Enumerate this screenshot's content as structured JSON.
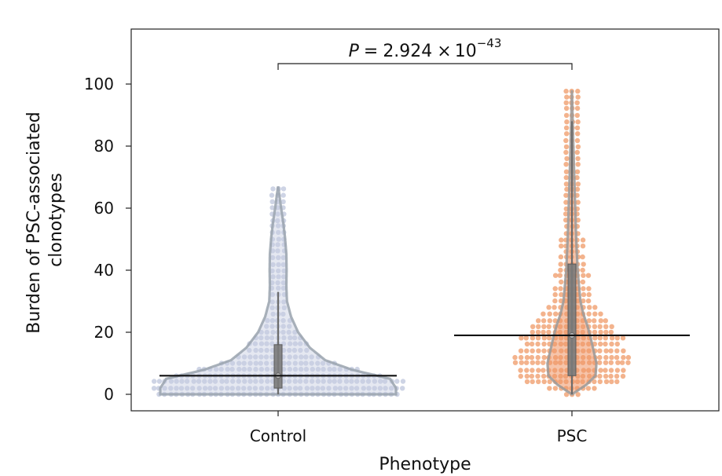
{
  "chart_data": {
    "type": "violin-swarm",
    "xlabel": "Phenotype",
    "ylabel_line1": "Burden of PSC-associated",
    "ylabel_line2": "clonotypes",
    "ylim": [
      -5,
      118
    ],
    "yticks": [
      0,
      20,
      40,
      60,
      80,
      100
    ],
    "categories": [
      "Control",
      "PSC"
    ],
    "groups": [
      {
        "name": "Control",
        "color": "#c5cde0",
        "edge_color": "#9aa3ae",
        "median": 6,
        "q1": 2,
        "q3": 16,
        "whisker_low": 0,
        "whisker_high": 33,
        "max": 67,
        "mean_line": 6,
        "density": [
          [
            0,
            1.0
          ],
          [
            2,
            1.0
          ],
          [
            5,
            0.95
          ],
          [
            8,
            0.62
          ],
          [
            11,
            0.4
          ],
          [
            15,
            0.27
          ],
          [
            20,
            0.17
          ],
          [
            25,
            0.11
          ],
          [
            30,
            0.075
          ],
          [
            35,
            0.07
          ],
          [
            40,
            0.072
          ],
          [
            45,
            0.07
          ],
          [
            50,
            0.06
          ],
          [
            55,
            0.045
          ],
          [
            60,
            0.025
          ],
          [
            64,
            0.012
          ],
          [
            67,
            0.0
          ]
        ]
      },
      {
        "name": "PSC",
        "color": "#f0a070",
        "edge_color": "#9a9a9a",
        "median": 19,
        "q1": 6,
        "q3": 42,
        "whisker_low": 0,
        "whisker_high": 88,
        "max": 98,
        "mean_line": 19,
        "density": [
          [
            0,
            0.0
          ],
          [
            1,
            0.1
          ],
          [
            3,
            0.3
          ],
          [
            6,
            0.5
          ],
          [
            10,
            0.52
          ],
          [
            14,
            0.46
          ],
          [
            18,
            0.4
          ],
          [
            22,
            0.33
          ],
          [
            26,
            0.24
          ],
          [
            30,
            0.18
          ],
          [
            40,
            0.12
          ],
          [
            50,
            0.09
          ],
          [
            60,
            0.07
          ],
          [
            70,
            0.05
          ],
          [
            80,
            0.03
          ],
          [
            90,
            0.012
          ],
          [
            98,
            0.0
          ]
        ]
      }
    ],
    "significance": {
      "prefix": "P",
      "equals": "=",
      "value": "2.924",
      "times": "×",
      "base": "10",
      "exponent": "−43"
    }
  }
}
